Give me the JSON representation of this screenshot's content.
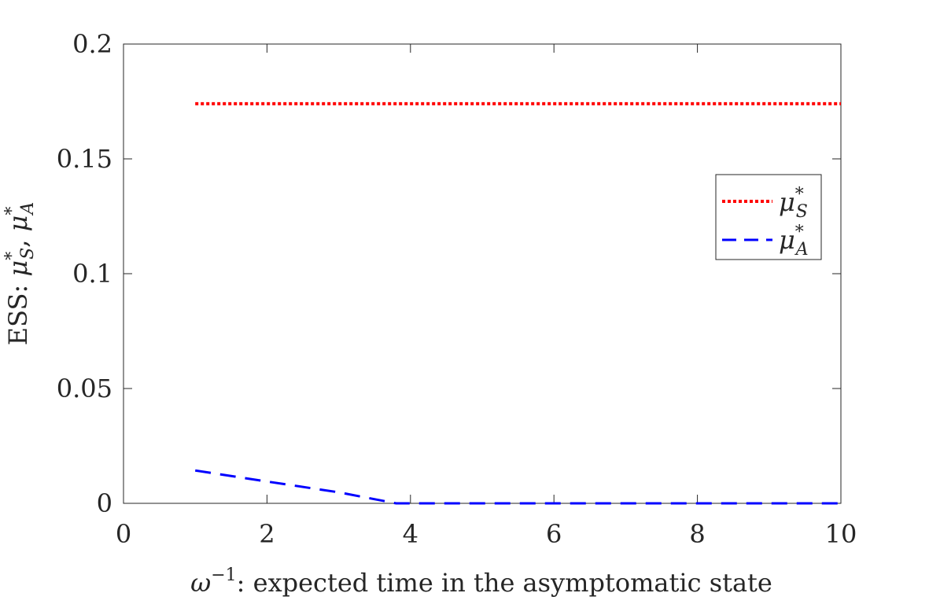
{
  "chart_data": {
    "type": "line",
    "xlim": [
      0,
      10
    ],
    "ylim": [
      0,
      0.2
    ],
    "x_ticks": [
      0,
      2,
      4,
      6,
      8,
      10
    ],
    "x_tick_labels": [
      "0",
      "2",
      "4",
      "6",
      "8",
      "10"
    ],
    "y_ticks": [
      0,
      0.05,
      0.1,
      0.15,
      0.2
    ],
    "y_tick_labels": [
      "0",
      "0.05",
      "0.1",
      "0.15",
      "0.2"
    ],
    "xlabel": {
      "symbol": "ω",
      "superscript": "−1",
      "text": ": expected time in the asymptomatic state"
    },
    "ylabel": {
      "prefix": "ESS: ",
      "sym1": "μ",
      "sym1_sup": "*",
      "sym1_sub": "S",
      "separator": ",  ",
      "sym2": "μ",
      "sym2_sup": "*",
      "sym2_sub": "A"
    },
    "grid": false,
    "box": true,
    "legend_position": "right",
    "series": [
      {
        "name": "μ*S",
        "legend_symbol": "μ",
        "legend_sup": "*",
        "legend_sub": "S",
        "style": "dotted",
        "color": "#ff0000",
        "x": [
          1,
          10
        ],
        "y": [
          0.174,
          0.174
        ]
      },
      {
        "name": "μ*A",
        "legend_symbol": "μ",
        "legend_sup": "*",
        "legend_sub": "A",
        "style": "dashed",
        "color": "#0000ff",
        "x": [
          1,
          2,
          3,
          3.8,
          4,
          6,
          8,
          10
        ],
        "y": [
          0.0143,
          0.0095,
          0.0048,
          0,
          0,
          0,
          0,
          0
        ]
      }
    ]
  }
}
